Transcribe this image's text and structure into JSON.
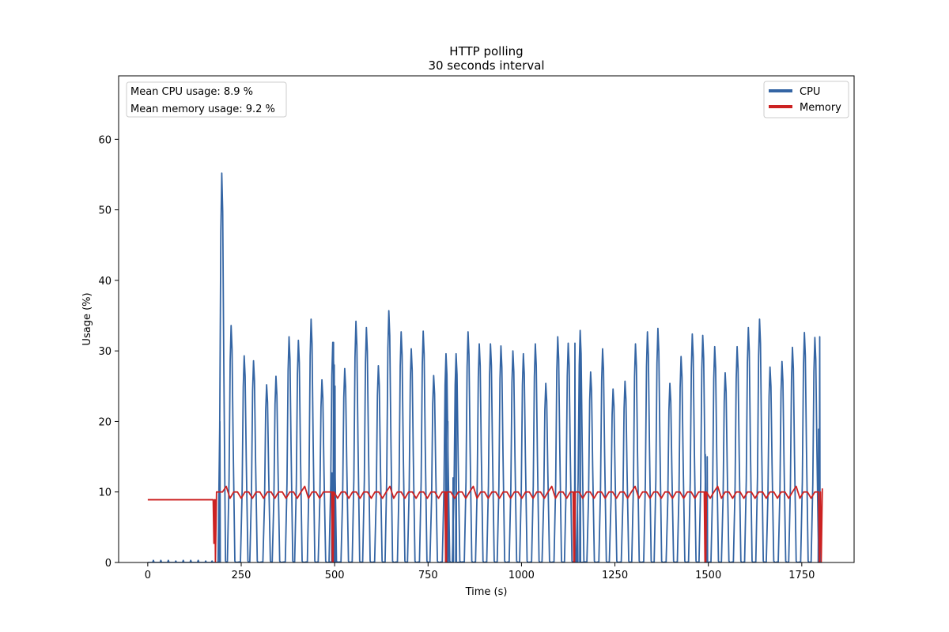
{
  "chart_data": {
    "type": "line",
    "title": "HTTP polling",
    "subtitle": "30 seconds interval",
    "xlabel": "Time (s)",
    "ylabel": "Usage (%)",
    "xlim": [
      -78,
      1890
    ],
    "ylim": [
      0,
      69
    ],
    "x_ticks": [
      0,
      250,
      500,
      750,
      1000,
      1250,
      1500,
      1750
    ],
    "y_ticks": [
      0,
      10,
      20,
      30,
      40,
      50,
      60
    ],
    "grid": false,
    "legend_position": "top-right",
    "stats": [
      "Mean CPU usage: 8.9 %",
      "Mean memory usage: 9.2 %"
    ],
    "series": [
      {
        "name": "CPU",
        "color": "#3465a4",
        "background_x": [
          0,
          180
        ],
        "background_bumps": [
          [
            15,
            0.3
          ],
          [
            35,
            0.3
          ],
          [
            55,
            0.3
          ],
          [
            75,
            0.2
          ],
          [
            95,
            0.3
          ],
          [
            115,
            0.3
          ],
          [
            135,
            0.3
          ],
          [
            155,
            0.2
          ],
          [
            172,
            0.2
          ]
        ],
        "peaks": [
          [
            198,
            55.2
          ],
          [
            223,
            33.6
          ],
          [
            258,
            29.3
          ],
          [
            283,
            28.6
          ],
          [
            318,
            25.2
          ],
          [
            343,
            26.4
          ],
          [
            378,
            32.0
          ],
          [
            403,
            31.5
          ],
          [
            437,
            34.5
          ],
          [
            466,
            25.9
          ],
          [
            495,
            31.2
          ],
          [
            527,
            27.5
          ],
          [
            557,
            34.2
          ],
          [
            585,
            33.3
          ],
          [
            617,
            27.9
          ],
          [
            645,
            35.7
          ],
          [
            678,
            32.7
          ],
          [
            705,
            30.3
          ],
          [
            737,
            32.8
          ],
          [
            765,
            26.5
          ],
          [
            798,
            29.6
          ],
          [
            825,
            29.6
          ],
          [
            857,
            32.7
          ],
          [
            887,
            31.0
          ],
          [
            917,
            31.0
          ],
          [
            945,
            30.7
          ],
          [
            977,
            30.0
          ],
          [
            1005,
            29.6
          ],
          [
            1037,
            31.0
          ],
          [
            1065,
            25.4
          ],
          [
            1097,
            32.0
          ],
          [
            1125,
            31.1
          ],
          [
            1157,
            32.9
          ],
          [
            1185,
            27.0
          ],
          [
            1217,
            30.3
          ],
          [
            1245,
            24.6
          ],
          [
            1277,
            25.7
          ],
          [
            1305,
            31.0
          ],
          [
            1337,
            32.7
          ],
          [
            1365,
            33.2
          ],
          [
            1397,
            25.4
          ],
          [
            1427,
            29.2
          ],
          [
            1457,
            32.4
          ],
          [
            1485,
            32.2
          ],
          [
            1517,
            30.6
          ],
          [
            1545,
            26.9
          ],
          [
            1577,
            30.6
          ],
          [
            1607,
            33.3
          ],
          [
            1637,
            34.5
          ],
          [
            1665,
            27.7
          ],
          [
            1697,
            28.5
          ],
          [
            1725,
            30.5
          ],
          [
            1757,
            32.6
          ],
          [
            1785,
            31.9
          ]
        ],
        "spike_bursts": [
          [
            193,
            20.0
          ],
          [
            493,
            12.7
          ],
          [
            497,
            31.2
          ],
          [
            499,
            28.0
          ],
          [
            501,
            25.0
          ],
          [
            798,
            29.6
          ],
          [
            803,
            20.0
          ],
          [
            817,
            12.0
          ],
          [
            825,
            29.0
          ],
          [
            1143,
            31.1
          ],
          [
            1150,
            8.0
          ],
          [
            1157,
            32.9
          ],
          [
            1492,
            15.3
          ],
          [
            1497,
            15.0
          ],
          [
            1795,
            18.9
          ],
          [
            1798,
            32.0
          ]
        ]
      },
      {
        "name": "Memory",
        "color": "#cc2222",
        "initial_level": 8.9,
        "initial_until": 175,
        "dropouts": [
          [
            175,
            2.7
          ],
          [
            181,
            0
          ],
          [
            495,
            0
          ],
          [
            798,
            0
          ],
          [
            1141,
            0
          ],
          [
            1492,
            0
          ],
          [
            1795,
            0
          ]
        ],
        "baseline": 10.0,
        "high_level": 10.8,
        "low_level": 9.1,
        "end_value": 10.5
      }
    ]
  }
}
